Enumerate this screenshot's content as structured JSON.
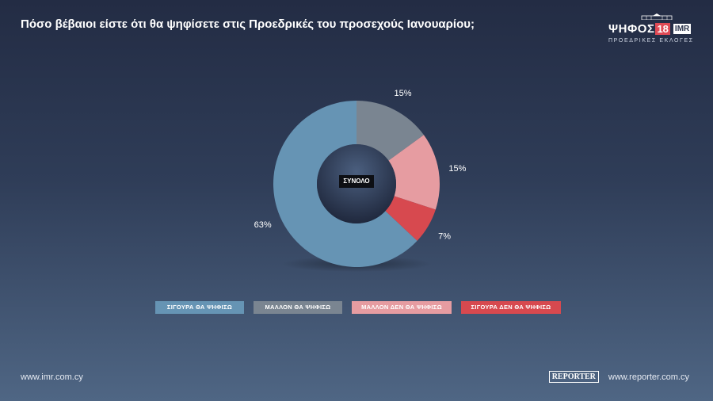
{
  "title": "Πόσο βέβαιοι είστε ότι θα ψηφίσετε στις Προεδρικές του προσεχούς Ιανουαρίου;",
  "brand": {
    "name": "ΨΗΦΟΣ",
    "number": "18",
    "partner": "IMR",
    "subtitle": "ΠΡΟΕΔΡΙΚΕΣ ΕΚΛΟΓΕΣ"
  },
  "center_label": "ΣΥΝΟΛΟ",
  "colors": {
    "sigoura": "#6694b4",
    "mallon": "#7a8591",
    "mallon_den": "#e69ca1",
    "sigoura_den": "#d7494f"
  },
  "chart_data": {
    "type": "pie",
    "categories": [
      "ΣΙΓΟΥΡΑ ΘΑ ΨΗΦΙΣΩ",
      "ΜΑΛΛΟΝ ΘΑ ΨΗΦΙΣΩ",
      "ΜΑΛΛΟΝ ΔΕΝ ΘΑ ΨΗΦΙΣΩ",
      "ΣΙΓΟΥΡΑ ΔΕΝ ΘΑ ΨΗΦΙΣΩ"
    ],
    "values": [
      63,
      15,
      15,
      7
    ],
    "value_labels": [
      "63%",
      "15%",
      "15%",
      "7%"
    ],
    "donut": true,
    "legend_position": "bottom"
  },
  "footer": {
    "left_url": "www.imr.com.cy",
    "logo": "REPORTER",
    "right_url": "www.reporter.com.cy"
  }
}
